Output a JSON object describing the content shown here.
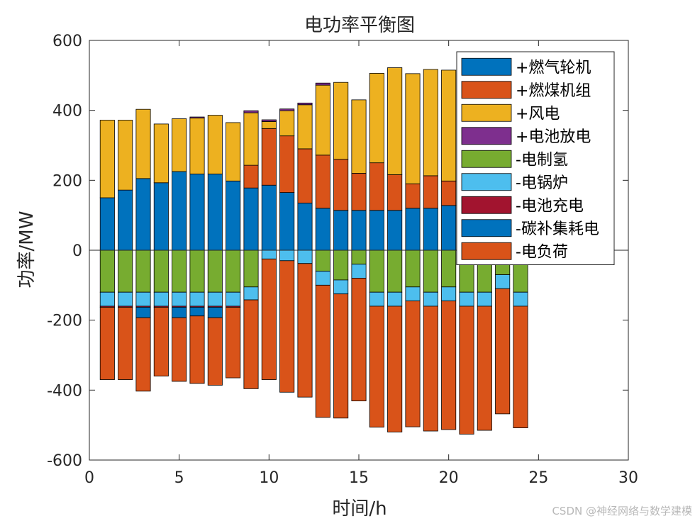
{
  "chart_data": {
    "type": "bar",
    "stacked": true,
    "title": "电功率平衡图",
    "xlabel": "时间/h",
    "ylabel": "功率/MW",
    "xlim": [
      0,
      30
    ],
    "ylim": [
      -600,
      600
    ],
    "xticks": [
      0,
      5,
      10,
      15,
      20,
      25,
      30
    ],
    "yticks": [
      -600,
      -400,
      -200,
      0,
      200,
      400,
      600
    ],
    "x": [
      1,
      2,
      3,
      4,
      5,
      6,
      7,
      8,
      9,
      10,
      11,
      12,
      13,
      14,
      15,
      16,
      17,
      18,
      19,
      20,
      21,
      22,
      23,
      24
    ],
    "legend_position": "top-right",
    "positive_series": [
      {
        "name": "+燃气轮机",
        "color": "#0072BD",
        "values": [
          150,
          172,
          205,
          193,
          225,
          218,
          218,
          198,
          178,
          186,
          165,
          135,
          120,
          114,
          114,
          114,
          114,
          120,
          120,
          128,
          120,
          120,
          120,
          120
        ]
      },
      {
        "name": "+燃煤机组",
        "color": "#D95319",
        "values": [
          0,
          0,
          0,
          0,
          0,
          0,
          0,
          0,
          65,
          162,
          162,
          155,
          152,
          146,
          106,
          136,
          102,
          70,
          93,
          70,
          110,
          70,
          70,
          80
        ]
      },
      {
        "name": "+风电",
        "color": "#EDB120",
        "values": [
          222,
          200,
          198,
          168,
          151,
          160,
          168,
          167,
          150,
          20,
          72,
          126,
          200,
          220,
          210,
          256,
          306,
          315,
          304,
          317,
          334,
          330,
          290,
          310
        ]
      },
      {
        "name": "+电池放电",
        "color": "#7E2F8E",
        "values": [
          0,
          0,
          0,
          0,
          0,
          3,
          0,
          0,
          6,
          5,
          5,
          5,
          6,
          0,
          0,
          0,
          0,
          0,
          0,
          0,
          0,
          0,
          0,
          0
        ]
      }
    ],
    "negative_series": [
      {
        "name": "-电制氢",
        "color": "#77AC30",
        "values": [
          120,
          120,
          120,
          120,
          120,
          120,
          120,
          120,
          105,
          0,
          0,
          0,
          60,
          85,
          40,
          120,
          120,
          105,
          120,
          105,
          120,
          120,
          70,
          120
        ]
      },
      {
        "name": "-电锅炉",
        "color": "#4DBEEE",
        "values": [
          40,
          40,
          40,
          40,
          40,
          40,
          40,
          40,
          37,
          25,
          30,
          38,
          40,
          40,
          40,
          40,
          40,
          40,
          40,
          40,
          40,
          40,
          40,
          40
        ]
      },
      {
        "name": "-电池充电",
        "color": "#A2142F",
        "values": [
          3,
          3,
          3,
          3,
          3,
          3,
          3,
          3,
          0,
          0,
          0,
          0,
          0,
          0,
          0,
          0,
          0,
          0,
          0,
          0,
          0,
          0,
          0,
          0
        ]
      },
      {
        "name": "-碳补集耗电",
        "color": "#0072BD",
        "values": [
          0,
          0,
          30,
          0,
          30,
          25,
          30,
          0,
          0,
          0,
          0,
          0,
          0,
          0,
          0,
          0,
          0,
          0,
          0,
          0,
          0,
          0,
          0,
          0
        ]
      },
      {
        "name": "-电负荷",
        "color": "#D95319",
        "values": [
          207,
          207,
          210,
          197,
          182,
          193,
          193,
          202,
          254,
          345,
          376,
          382,
          378,
          355,
          351,
          346,
          360,
          360,
          357,
          368,
          366,
          355,
          358,
          348
        ]
      }
    ]
  },
  "watermark": "CSDN @神经网络与数学建模"
}
